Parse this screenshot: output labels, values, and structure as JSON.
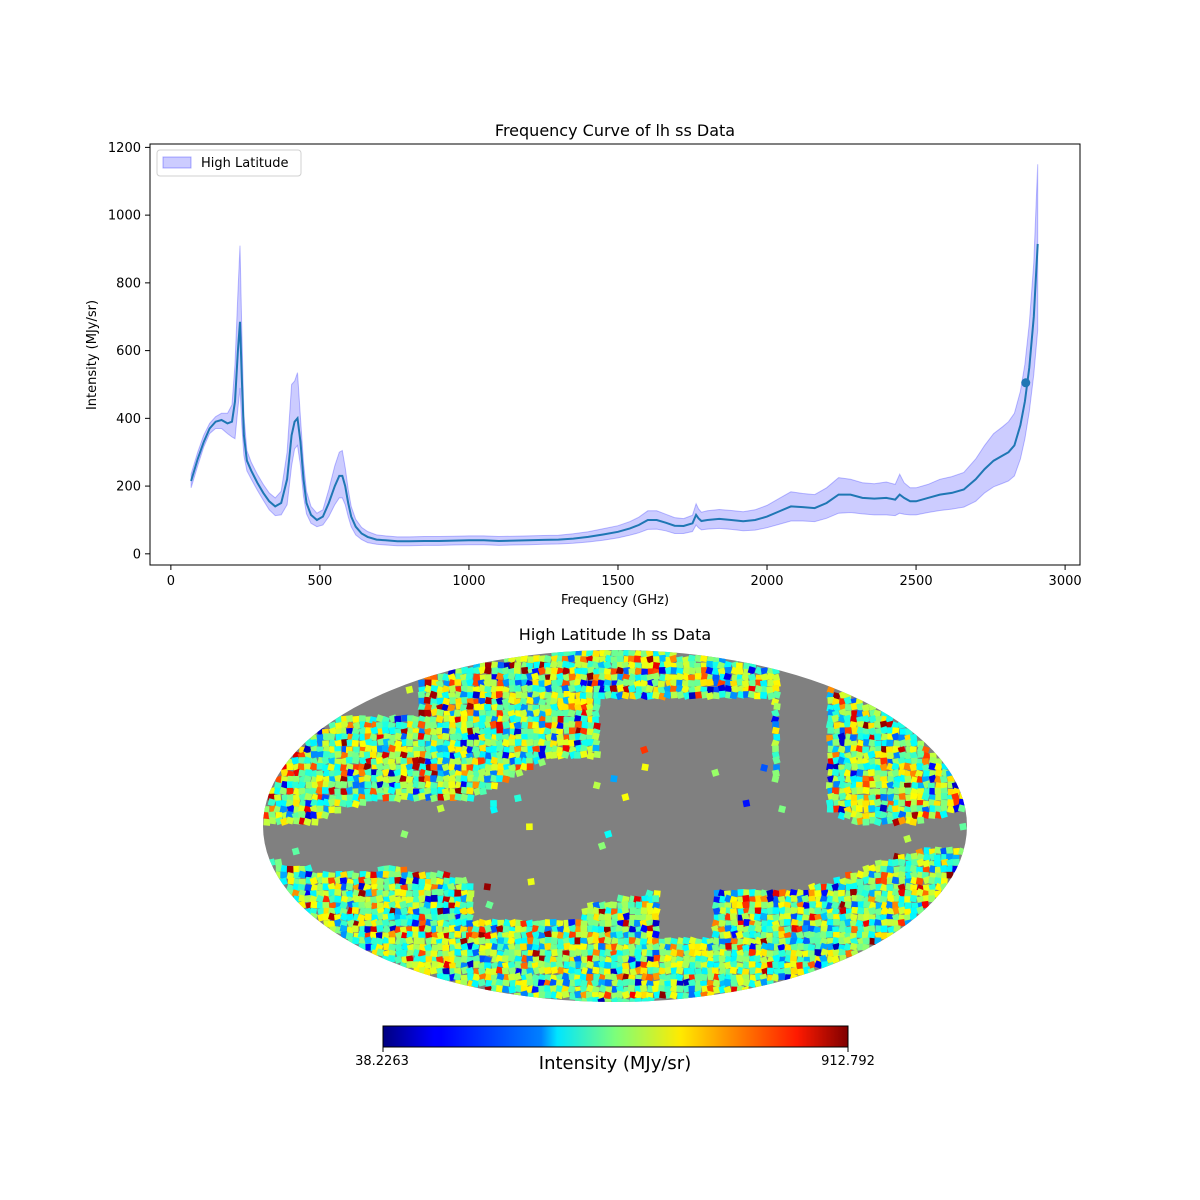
{
  "colors": {
    "line": "#1f77b4",
    "band": "#0000ff",
    "mask": "#808080",
    "axis": "#000000"
  },
  "chart_data": [
    {
      "type": "line",
      "title": "Frequency Curve of lh ss Data",
      "xlabel": "Frequency (GHz)",
      "ylabel": "Intensity (MJy/sr)",
      "xlim": [
        -70,
        3050
      ],
      "ylim": [
        -33,
        1210
      ],
      "xticks": [
        0,
        500,
        1000,
        1500,
        2000,
        2500,
        3000
      ],
      "yticks": [
        0,
        200,
        400,
        600,
        800,
        1000,
        1200
      ],
      "legend": {
        "position": "top-left",
        "label": "High Latitude"
      },
      "grid": false,
      "series": [
        {
          "name": "High Latitude",
          "x": [
            68,
            90,
            110,
            130,
            150,
            170,
            190,
            205,
            215,
            225,
            232,
            238,
            245,
            255,
            270,
            290,
            310,
            330,
            350,
            370,
            390,
            405,
            415,
            425,
            435,
            445,
            455,
            470,
            490,
            510,
            530,
            550,
            565,
            575,
            585,
            595,
            605,
            620,
            640,
            660,
            690,
            720,
            760,
            800,
            850,
            900,
            950,
            1000,
            1050,
            1100,
            1150,
            1200,
            1250,
            1300,
            1350,
            1400,
            1450,
            1500,
            1540,
            1570,
            1600,
            1630,
            1660,
            1690,
            1720,
            1750,
            1762,
            1770,
            1780,
            1800,
            1840,
            1880,
            1920,
            1960,
            2000,
            2040,
            2080,
            2120,
            2160,
            2200,
            2240,
            2280,
            2320,
            2360,
            2400,
            2430,
            2445,
            2460,
            2480,
            2500,
            2540,
            2580,
            2620,
            2660,
            2700,
            2730,
            2760,
            2790,
            2810,
            2830,
            2850,
            2865,
            2880,
            2895,
            2908
          ],
          "y": [
            215,
            280,
            330,
            370,
            390,
            395,
            385,
            390,
            450,
            600,
            685,
            520,
            350,
            275,
            245,
            210,
            180,
            155,
            140,
            150,
            220,
            350,
            390,
            400,
            330,
            220,
            150,
            115,
            100,
            110,
            150,
            200,
            230,
            230,
            200,
            150,
            110,
            80,
            60,
            50,
            42,
            40,
            37,
            37,
            38,
            38,
            39,
            40,
            40,
            38,
            39,
            40,
            41,
            42,
            45,
            50,
            57,
            65,
            75,
            85,
            100,
            100,
            92,
            83,
            82,
            90,
            115,
            105,
            97,
            100,
            103,
            100,
            96,
            100,
            110,
            125,
            140,
            138,
            135,
            150,
            175,
            175,
            165,
            163,
            165,
            160,
            175,
            165,
            155,
            155,
            165,
            175,
            180,
            190,
            220,
            250,
            275,
            290,
            300,
            320,
            380,
            450,
            550,
            700,
            915
          ],
          "lower": [
            195,
            260,
            315,
            355,
            370,
            370,
            355,
            345,
            340,
            430,
            490,
            380,
            290,
            245,
            220,
            188,
            158,
            130,
            113,
            115,
            145,
            260,
            310,
            320,
            260,
            170,
            118,
            90,
            80,
            85,
            110,
            145,
            165,
            165,
            145,
            110,
            80,
            56,
            42,
            33,
            28,
            26,
            24,
            24,
            25,
            25,
            26,
            27,
            27,
            25,
            26,
            27,
            28,
            29,
            31,
            35,
            40,
            47,
            55,
            62,
            72,
            73,
            68,
            60,
            60,
            66,
            85,
            77,
            71,
            73,
            75,
            72,
            68,
            70,
            77,
            87,
            97,
            97,
            95,
            105,
            120,
            122,
            118,
            115,
            115,
            113,
            120,
            117,
            115,
            115,
            122,
            128,
            132,
            138,
            155,
            180,
            198,
            208,
            215,
            230,
            280,
            340,
            420,
            530,
            660
          ]
        }
      ],
      "upper": [
        235,
        300,
        350,
        385,
        405,
        415,
        415,
        440,
        560,
        770,
        910,
        660,
        410,
        305,
        270,
        235,
        205,
        180,
        165,
        185,
        300,
        500,
        510,
        535,
        400,
        270,
        185,
        140,
        120,
        130,
        190,
        260,
        300,
        305,
        255,
        190,
        140,
        102,
        78,
        66,
        56,
        53,
        50,
        50,
        51,
        51,
        52,
        53,
        53,
        51,
        52,
        53,
        54,
        55,
        59,
        65,
        74,
        83,
        95,
        108,
        127,
        127,
        117,
        107,
        104,
        114,
        148,
        133,
        123,
        127,
        131,
        128,
        124,
        130,
        143,
        163,
        183,
        178,
        175,
        195,
        225,
        220,
        210,
        207,
        212,
        205,
        235,
        210,
        195,
        195,
        205,
        220,
        228,
        240,
        280,
        320,
        355,
        375,
        390,
        415,
        480,
        560,
        680,
        860,
        1150
      ],
      "marker": {
        "x": 2868,
        "y": 505
      }
    },
    {
      "type": "heatmap",
      "title": "High Latitude lh ss Data",
      "projection": "mollweide",
      "colormap": "jet",
      "colorbar": {
        "label": "Intensity (MJy/sr)",
        "min_label": "38.2263",
        "max_label": "912.792",
        "min": 38.2263,
        "max": 912.792
      }
    }
  ]
}
